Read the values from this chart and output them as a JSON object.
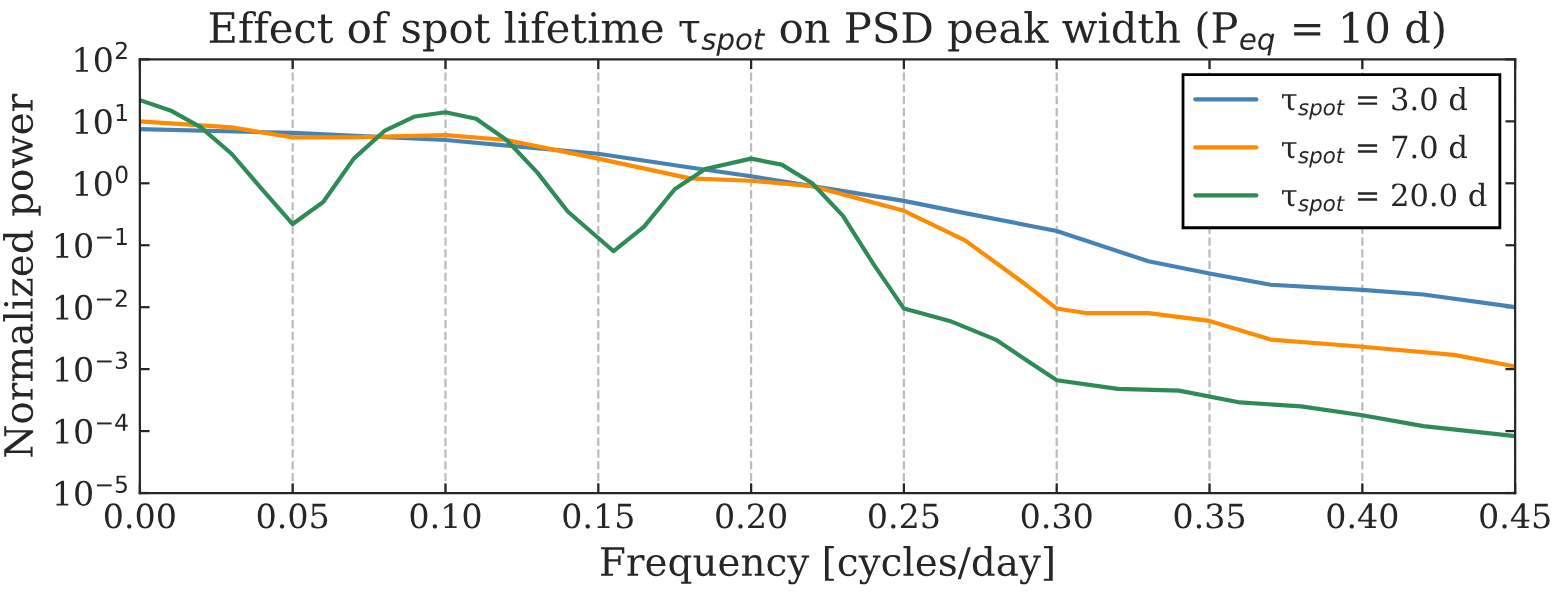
{
  "chart_data": {
    "type": "line",
    "title": "Effect of spot lifetime τ$_{spot}$ on PSD peak width (P$_{eq}$ = 10 d)",
    "xlabel": "Frequency [cycles/day]",
    "ylabel": "Normalized power",
    "log": "y",
    "grid": "x",
    "legend": "top right",
    "line_style": "solid",
    "marker": "none",
    "xlim": [
      0,
      0.45
    ],
    "xticks": [
      {
        "value": 0,
        "label": "0.00"
      },
      {
        "value": 0.05,
        "label": "0.05"
      },
      {
        "value": 0.1,
        "label": "0.10"
      },
      {
        "value": 0.15,
        "label": "0.15"
      },
      {
        "value": 0.2,
        "label": "0.20"
      },
      {
        "value": 0.25,
        "label": "0.25"
      },
      {
        "value": 0.3,
        "label": "0.30"
      },
      {
        "value": 0.35,
        "label": "0.35"
      },
      {
        "value": 0.4,
        "label": "0.40"
      },
      {
        "value": 0.45,
        "label": "0.45"
      }
    ],
    "ylim": [
      1e-05,
      100
    ],
    "yticks": [
      {
        "value": 1e-05,
        "label": "10$^{−5}$"
      },
      {
        "value": 0.0001,
        "label": "10$^{−4}$"
      },
      {
        "value": 0.001,
        "label": "10$^{−3}$"
      },
      {
        "value": 0.01,
        "label": "10$^{−2}$"
      },
      {
        "value": 0.1,
        "label": "10$^{−1}$"
      },
      {
        "value": 1,
        "label": "10$^{0}$"
      },
      {
        "value": 10,
        "label": "10$^{1}$"
      },
      {
        "value": 100,
        "label": "10$^{2}$"
      }
    ],
    "series": [
      {
        "name": "τ$_{spot}$ = 3.0 d",
        "color": "#4682b4",
        "x": [
          0,
          0.05,
          0.1,
          0.15,
          0.18,
          0.2,
          0.22,
          0.25,
          0.27,
          0.3,
          0.33,
          0.35,
          0.37,
          0.4,
          0.42,
          0.45
        ],
        "values": [
          7.5,
          6.5,
          5,
          3,
          1.8,
          1.3,
          0.9,
          0.52,
          0.33,
          0.17,
          0.055,
          0.035,
          0.023,
          0.019,
          0.016,
          0.01
        ]
      },
      {
        "name": "τ$_{spot}$ = 7.0 d",
        "color": "#ff8c00",
        "x": [
          0,
          0.03,
          0.05,
          0.07,
          0.1,
          0.12,
          0.15,
          0.18,
          0.2,
          0.22,
          0.25,
          0.27,
          0.29,
          0.3,
          0.31,
          0.33,
          0.35,
          0.37,
          0.4,
          0.43,
          0.45
        ],
        "values": [
          10,
          8,
          5.5,
          5.5,
          6,
          5,
          2.5,
          1.2,
          1.1,
          0.9,
          0.36,
          0.12,
          0.023,
          0.0095,
          0.008,
          0.008,
          0.006,
          0.003,
          0.0023,
          0.0017,
          0.0011
        ]
      },
      {
        "name": "τ$_{spot}$ = 20.0 d",
        "color": "#2e8b57",
        "x": [
          0,
          0.01,
          0.02,
          0.03,
          0.04,
          0.05,
          0.06,
          0.07,
          0.08,
          0.09,
          0.1,
          0.11,
          0.12,
          0.13,
          0.14,
          0.155,
          0.165,
          0.175,
          0.185,
          0.2,
          0.21,
          0.22,
          0.23,
          0.24,
          0.25,
          0.265,
          0.28,
          0.3,
          0.32,
          0.34,
          0.36,
          0.38,
          0.4,
          0.42,
          0.45
        ],
        "values": [
          22,
          15,
          8,
          3,
          0.8,
          0.22,
          0.5,
          2.5,
          7,
          12,
          14,
          11,
          5,
          1.5,
          0.35,
          0.08,
          0.2,
          0.8,
          1.7,
          2.5,
          2,
          1.0,
          0.3,
          0.05,
          0.0095,
          0.006,
          0.003,
          0.00066,
          0.00048,
          0.00045,
          0.00029,
          0.00025,
          0.00018,
          0.00012,
          8.3e-05
        ]
      }
    ]
  }
}
